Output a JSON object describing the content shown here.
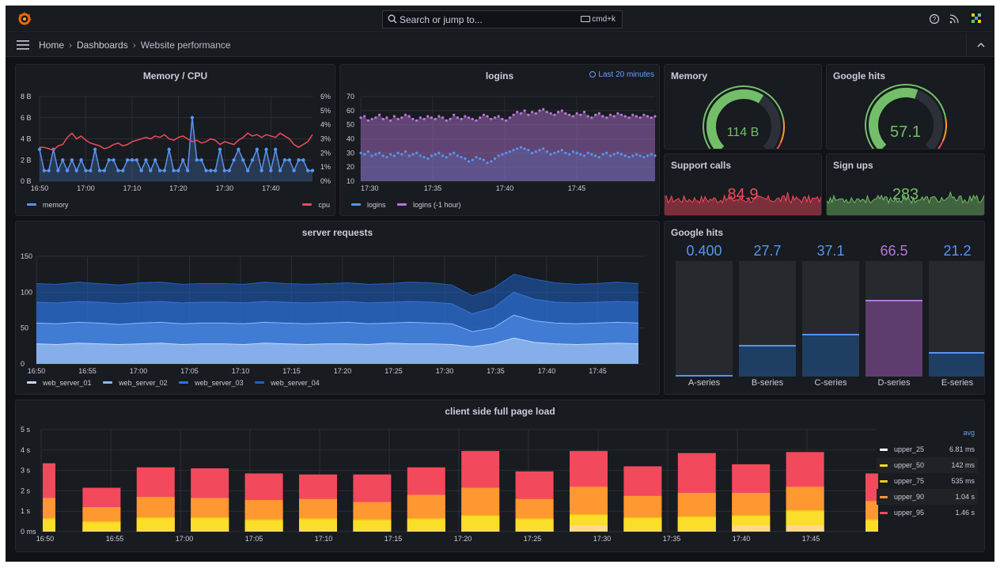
{
  "topbar": {
    "search_placeholder": "Search or jump to...",
    "shortcut": "cmd+k"
  },
  "breadcrumb": {
    "home": "Home",
    "dashboards": "Dashboards",
    "current": "Website performance"
  },
  "colors": {
    "blue": "#5794f2",
    "red": "#f2495c",
    "green": "#73bf69",
    "purple": "#b877d9",
    "orange": "#ff9830",
    "yellow": "#fade2a",
    "ochre": "#f2cc0c"
  },
  "panels": {
    "memory_cpu": {
      "title": "Memory / CPU",
      "legend": [
        "memory",
        "cpu"
      ],
      "y_left_ticks": [
        "8 B",
        "6 B",
        "4 B",
        "2 B",
        "0 B"
      ],
      "y_right_ticks": [
        "6%",
        "5%",
        "4%",
        "3%",
        "2%",
        "1%",
        "0%"
      ],
      "x_ticks": [
        "16:50",
        "17:00",
        "17:10",
        "17:20",
        "17:30",
        "17:40"
      ]
    },
    "logins": {
      "title": "logins",
      "time_picker": "Last 20 minutes",
      "legend": [
        "logins",
        "logins (-1 hour)"
      ],
      "y_ticks": [
        "70",
        "60",
        "50",
        "40",
        "30",
        "20",
        "10"
      ],
      "x_ticks": [
        "17:30",
        "17:35",
        "17:40",
        "17:45"
      ]
    },
    "memory_gauge": {
      "title": "Memory",
      "value": "114 B",
      "fraction": 0.62
    },
    "google_hits_gauge": {
      "title": "Google hits",
      "value": "57.1",
      "fraction": 0.57
    },
    "support_calls": {
      "title": "Support calls",
      "value": "84.9"
    },
    "sign_ups": {
      "title": "Sign ups",
      "value": "283"
    },
    "server_requests": {
      "title": "server requests",
      "legend": [
        "web_server_01",
        "web_server_02",
        "web_server_03",
        "web_server_04"
      ],
      "y_ticks": [
        "150",
        "100",
        "50",
        "0"
      ],
      "x_ticks": [
        "16:50",
        "16:55",
        "17:00",
        "17:05",
        "17:10",
        "17:15",
        "17:20",
        "17:25",
        "17:30",
        "17:35",
        "17:40",
        "17:45"
      ]
    },
    "google_hits_bars": {
      "title": "Google hits",
      "bars": [
        {
          "label": "A-series",
          "value": "0.400",
          "level": 0.004,
          "color": "#5794f2"
        },
        {
          "label": "B-series",
          "value": "27.7",
          "level": 0.277,
          "color": "#5794f2"
        },
        {
          "label": "C-series",
          "value": "37.1",
          "level": 0.371,
          "color": "#5794f2"
        },
        {
          "label": "D-series",
          "value": "66.5",
          "level": 0.665,
          "color": "#b877d9"
        },
        {
          "label": "E-series",
          "value": "21.2",
          "level": 0.212,
          "color": "#5794f2"
        }
      ]
    },
    "page_load": {
      "title": "client side full page load",
      "y_ticks": [
        "5 s",
        "4 s",
        "3 s",
        "2 s",
        "1 s",
        "0 ms"
      ],
      "x_ticks": [
        "16:50",
        "16:55",
        "17:00",
        "17:05",
        "17:10",
        "17:15",
        "17:20",
        "17:25",
        "17:30",
        "17:35",
        "17:40",
        "17:45"
      ],
      "legend_header": "avg",
      "legend": [
        {
          "name": "upper_25",
          "value": "6.81 ms",
          "color": "#ffffff"
        },
        {
          "name": "upper_50",
          "value": "142 ms",
          "color": "#fade2a"
        },
        {
          "name": "upper_75",
          "value": "535 ms",
          "color": "#f2cc0c"
        },
        {
          "name": "upper_90",
          "value": "1.04 s",
          "color": "#ff9830"
        },
        {
          "name": "upper_95",
          "value": "1.46 s",
          "color": "#f2495c"
        }
      ]
    }
  },
  "chart_data": [
    {
      "type": "line",
      "title": "Memory / CPU",
      "x": [
        "16:50",
        "16:51",
        "16:52",
        "16:53",
        "16:54",
        "16:55",
        "16:56",
        "16:57",
        "16:58",
        "16:59",
        "17:00",
        "17:01",
        "17:02",
        "17:03",
        "17:04",
        "17:05",
        "17:06",
        "17:07",
        "17:08",
        "17:09",
        "17:10",
        "17:11",
        "17:12",
        "17:13",
        "17:14",
        "17:15",
        "17:16",
        "17:17",
        "17:18",
        "17:19",
        "17:20",
        "17:21",
        "17:22",
        "17:23",
        "17:24",
        "17:25",
        "17:26",
        "17:27",
        "17:28",
        "17:29",
        "17:30",
        "17:31",
        "17:32",
        "17:33",
        "17:34",
        "17:35",
        "17:36",
        "17:37",
        "17:38",
        "17:39",
        "17:40",
        "17:41",
        "17:42",
        "17:43",
        "17:44",
        "17:45",
        "17:46",
        "17:47",
        "17:48",
        "17:49"
      ],
      "series": [
        {
          "name": "memory",
          "axis": "left",
          "unit": "B",
          "values": [
            3,
            1,
            1,
            3,
            1,
            2,
            1,
            2,
            1,
            2,
            1,
            1,
            3,
            1,
            1,
            2,
            2,
            1,
            1,
            2,
            2,
            2,
            1,
            2,
            1,
            2,
            1,
            1,
            3,
            1,
            1,
            2,
            1,
            6,
            2,
            2,
            1,
            1,
            1,
            3,
            1,
            1,
            2,
            3,
            2,
            1,
            2,
            3,
            1,
            3,
            1,
            3,
            1,
            2,
            2,
            1,
            2,
            2,
            1,
            1
          ]
        },
        {
          "name": "cpu",
          "axis": "right",
          "unit": "%",
          "values": [
            2.4,
            2.4,
            2.3,
            2.2,
            2.5,
            2.6,
            3.1,
            3.4,
            3.0,
            3.2,
            2.9,
            2.7,
            2.6,
            2.5,
            2.3,
            2.4,
            2.6,
            2.7,
            2.5,
            2.6,
            2.8,
            2.9,
            3.0,
            3.1,
            3.0,
            3.2,
            3.1,
            3.3,
            3.0,
            2.9,
            3.1,
            3.2,
            3.0,
            2.8,
            2.9,
            2.7,
            2.8,
            3.0,
            2.9,
            2.6,
            2.8,
            2.7,
            2.6,
            2.9,
            3.1,
            3.4,
            3.2,
            3.3,
            3.1,
            3.3,
            3.2,
            3.1,
            3.4,
            3.2,
            3.0,
            2.6,
            2.4,
            2.6,
            2.8,
            3.3
          ]
        }
      ],
      "ylim_left": [
        0,
        8
      ],
      "ylim_right": [
        0,
        6
      ]
    },
    {
      "type": "scatter",
      "title": "logins",
      "x_ticks": [
        "17:30",
        "17:35",
        "17:40",
        "17:45"
      ],
      "series": [
        {
          "name": "logins",
          "values": [
            30,
            29,
            31,
            28,
            29,
            30,
            28,
            27,
            29,
            28,
            30,
            29,
            31,
            28,
            29,
            30,
            28,
            27,
            26,
            28,
            29,
            30,
            28,
            27,
            29,
            30,
            28,
            27,
            26,
            24,
            25,
            27,
            26,
            25,
            23,
            24,
            26,
            28,
            29,
            30,
            31,
            32,
            33,
            34,
            33,
            32,
            30,
            31,
            32,
            33,
            31,
            29,
            30,
            31,
            32,
            30,
            29,
            31,
            30,
            29,
            28,
            30,
            29,
            28,
            27,
            29,
            30,
            28,
            29,
            30,
            29,
            28,
            27,
            28,
            29,
            28,
            27,
            28,
            29,
            28
          ]
        },
        {
          "name": "logins (-1 hour)",
          "values": [
            55,
            56,
            53,
            54,
            55,
            57,
            54,
            55,
            53,
            56,
            54,
            55,
            57,
            56,
            54,
            53,
            55,
            54,
            56,
            55,
            54,
            56,
            55,
            53,
            54,
            57,
            55,
            54,
            56,
            55,
            54,
            53,
            55,
            57,
            56,
            54,
            55,
            56,
            54,
            53,
            55,
            57,
            59,
            58,
            60,
            57,
            59,
            58,
            60,
            61,
            59,
            58,
            57,
            59,
            60,
            58,
            57,
            56,
            58,
            57,
            59,
            56,
            55,
            57,
            58,
            56,
            55,
            57,
            56,
            58,
            57,
            56,
            55,
            57,
            56,
            55,
            57,
            56,
            55,
            56
          ]
        }
      ],
      "ylim": [
        10,
        70
      ]
    },
    {
      "type": "area",
      "title": "server requests",
      "x_ticks": [
        "16:50",
        "16:55",
        "17:00",
        "17:05",
        "17:10",
        "17:15",
        "17:20",
        "17:25",
        "17:30",
        "17:35",
        "17:40",
        "17:45"
      ],
      "series": [
        {
          "name": "web_server_01",
          "values": [
            28,
            27,
            29,
            28,
            27,
            28,
            29,
            27,
            28,
            28,
            27,
            29,
            28,
            27,
            28,
            28,
            27,
            29,
            28,
            28,
            27,
            24,
            28,
            36,
            30,
            28,
            27,
            28,
            29,
            28
          ]
        },
        {
          "name": "web_server_02",
          "values": [
            57,
            56,
            58,
            57,
            55,
            57,
            58,
            56,
            57,
            57,
            56,
            58,
            57,
            56,
            57,
            58,
            56,
            57,
            58,
            57,
            56,
            45,
            50,
            68,
            60,
            57,
            56,
            57,
            58,
            57
          ]
        },
        {
          "name": "web_server_03",
          "values": [
            86,
            85,
            87,
            86,
            84,
            86,
            87,
            85,
            86,
            86,
            85,
            87,
            86,
            85,
            86,
            87,
            85,
            86,
            87,
            86,
            84,
            70,
            78,
            100,
            90,
            86,
            85,
            86,
            87,
            86
          ]
        },
        {
          "name": "web_server_04",
          "values": [
            112,
            111,
            114,
            112,
            110,
            113,
            114,
            111,
            112,
            112,
            111,
            114,
            112,
            111,
            112,
            113,
            111,
            112,
            114,
            113,
            110,
            95,
            105,
            125,
            118,
            113,
            111,
            112,
            114,
            112
          ]
        }
      ],
      "ylim": [
        0,
        150
      ]
    },
    {
      "type": "bar",
      "title": "Google hits",
      "categories": [
        "A-series",
        "B-series",
        "C-series",
        "D-series",
        "E-series"
      ],
      "values": [
        0.4,
        27.7,
        37.1,
        66.5,
        21.2
      ],
      "ylim": [
        0,
        100
      ]
    },
    {
      "type": "bar",
      "title": "client side full page load",
      "x": [
        "16:50",
        "16:53",
        "16:57",
        "17:01",
        "17:05",
        "17:09",
        "17:13",
        "17:17",
        "17:21",
        "17:25",
        "17:29",
        "17:33",
        "17:37",
        "17:41",
        "17:45",
        "17:49"
      ],
      "series": [
        {
          "name": "upper_25",
          "values": [
            0.05,
            0.05,
            0.05,
            0.05,
            0.05,
            0.05,
            0.05,
            0.05,
            0.05,
            0.05,
            0.3,
            0.05,
            0.05,
            0.3,
            0.3,
            0.05
          ]
        },
        {
          "name": "upper_50",
          "values": [
            0.6,
            0.45,
            0.65,
            0.65,
            0.55,
            0.6,
            0.55,
            0.6,
            0.75,
            0.6,
            0.8,
            0.65,
            0.7,
            0.75,
            1.0,
            0.55
          ]
        },
        {
          "name": "upper_75",
          "values": [
            0.65,
            0.5,
            0.7,
            0.7,
            0.6,
            0.65,
            0.6,
            0.65,
            0.8,
            0.65,
            0.85,
            0.7,
            0.75,
            0.8,
            1.05,
            0.6
          ]
        },
        {
          "name": "upper_90",
          "values": [
            1.65,
            1.2,
            1.7,
            1.65,
            1.55,
            1.6,
            1.45,
            1.8,
            2.15,
            1.6,
            2.2,
            1.75,
            1.9,
            1.9,
            2.2,
            1.5
          ]
        },
        {
          "name": "upper_95",
          "values": [
            3.35,
            2.15,
            3.15,
            3.1,
            2.85,
            2.8,
            2.8,
            3.15,
            3.95,
            2.95,
            3.95,
            3.2,
            3.85,
            3.3,
            3.9,
            2.85
          ]
        }
      ],
      "ylim": [
        0,
        5
      ],
      "yunit": "s"
    }
  ]
}
